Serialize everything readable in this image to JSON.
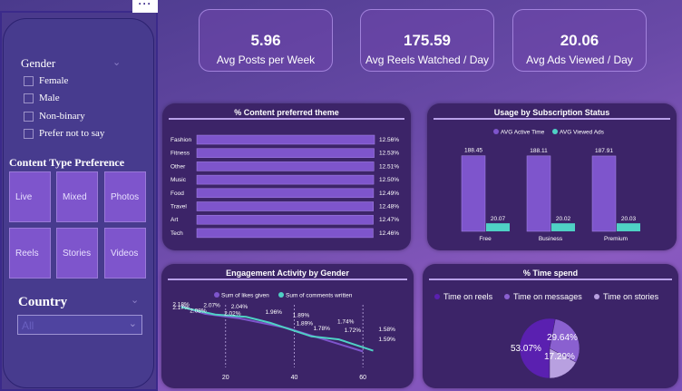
{
  "sidebar": {
    "menu_dots": "···",
    "gender_title": "Gender",
    "gender_options": [
      "Female",
      "Male",
      "Non-binary",
      "Prefer not to say"
    ],
    "content_title": "Content Type Preference",
    "content_tiles": [
      "Live",
      "Mixed",
      "Photos",
      "Reels",
      "Stories",
      "Videos"
    ],
    "country_title": "Country",
    "country_value": "All"
  },
  "kpis": [
    {
      "value": "5.96",
      "label": "Avg Posts per Week"
    },
    {
      "value": "175.59",
      "label": "Avg Reels Watched / Day"
    },
    {
      "value": "20.06",
      "label": "Avg Ads Viewed / Day"
    }
  ],
  "colors": {
    "bar_purple": "#7e55cc",
    "teal": "#4fd1c5",
    "card_bg": "#3c2468",
    "pie_dark": "#5a20b0",
    "pie_mid": "#8a60d0",
    "pie_light": "#b8a0e0"
  },
  "charts": {
    "theme": {
      "title": "% Content preferred theme"
    },
    "subscription": {
      "title": "Usage by Subscription Status",
      "legend": [
        "AVG Active Time",
        "AVG Viewed Ads"
      ]
    },
    "engagement": {
      "title": "Engagement Activity by Gender",
      "legend": [
        "Sum of likes given",
        "Sum of comments written"
      ]
    },
    "timespend": {
      "title": "% Time spend",
      "legend": [
        "Time on reels",
        "Time on messages",
        "Time on stories"
      ]
    }
  },
  "chart_data": [
    {
      "type": "bar",
      "title": "% Content preferred theme",
      "orientation": "horizontal",
      "categories": [
        "Fashion",
        "Fitness",
        "Other",
        "Music",
        "Food",
        "Travel",
        "Art",
        "Tech"
      ],
      "values": [
        12.56,
        12.53,
        12.51,
        12.5,
        12.49,
        12.48,
        12.47,
        12.46
      ],
      "labels": [
        "12.56%",
        "12.53%",
        "12.51%",
        "12.50%",
        "12.49%",
        "12.48%",
        "12.47%",
        "12.46%"
      ]
    },
    {
      "type": "bar",
      "title": "Usage by Subscription Status",
      "categories": [
        "Free",
        "Business",
        "Premium"
      ],
      "series": [
        {
          "name": "AVG Active Time",
          "values": [
            188.45,
            188.11,
            187.91
          ]
        },
        {
          "name": "AVG Viewed Ads",
          "values": [
            20.07,
            20.02,
            20.03
          ]
        }
      ],
      "labels": [
        [
          "188.45",
          "188.11",
          "187.91"
        ],
        [
          "20.07",
          "20.02",
          "20.03"
        ]
      ],
      "legend": "top"
    },
    {
      "type": "line",
      "title": "Engagement Activity by Gender",
      "x_ticks": [
        20,
        40,
        60
      ],
      "xlim": [
        5,
        70
      ],
      "ylim": [
        1.5,
        2.2
      ],
      "series": [
        {
          "name": "Sum of likes given",
          "x": [
            7,
            14,
            24,
            38,
            60
          ],
          "y": [
            2.18,
            2.08,
            2.02,
            1.89,
            1.58
          ]
        },
        {
          "name": "Sum of comments written",
          "x": [
            7,
            17,
            26,
            33,
            45,
            53,
            63
          ],
          "y": [
            2.17,
            2.07,
            2.04,
            1.96,
            1.78,
            1.74,
            1.59
          ]
        }
      ],
      "annotations": [
        {
          "text": "2.18%",
          "x": 7,
          "y": 2.18
        },
        {
          "text": "2.17%",
          "x": 7,
          "y": 2.14
        },
        {
          "text": "2.07%",
          "x": 16,
          "y": 2.17
        },
        {
          "text": "2.08%",
          "x": 12,
          "y": 2.1
        },
        {
          "text": "2.04%",
          "x": 24,
          "y": 2.15
        },
        {
          "text": "2.02%",
          "x": 22,
          "y": 2.06
        },
        {
          "text": "1.96%",
          "x": 34,
          "y": 2.08
        },
        {
          "text": "1.89%",
          "x": 42,
          "y": 2.04
        },
        {
          "text": "1.89%",
          "x": 43,
          "y": 1.93
        },
        {
          "text": "1.78%",
          "x": 48,
          "y": 1.86
        },
        {
          "text": "1.74%",
          "x": 55,
          "y": 1.95
        },
        {
          "text": "1.72%",
          "x": 57,
          "y": 1.84
        },
        {
          "text": "1.58%",
          "x": 67,
          "y": 1.85
        },
        {
          "text": "1.59%",
          "x": 67,
          "y": 1.72
        }
      ],
      "legend": "top"
    },
    {
      "type": "pie",
      "title": "% Time spend",
      "categories": [
        "Time on reels",
        "Time on messages",
        "Time on stories"
      ],
      "values": [
        53.07,
        29.64,
        17.29
      ],
      "labels": [
        "53.07%",
        "29.64%",
        "17.29%"
      ],
      "legend": "top"
    }
  ]
}
